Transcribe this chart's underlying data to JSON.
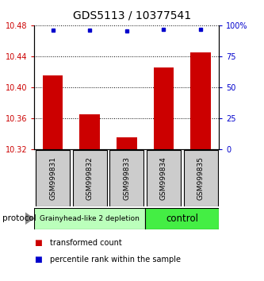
{
  "title": "GDS5113 / 10377541",
  "samples": [
    "GSM999831",
    "GSM999832",
    "GSM999833",
    "GSM999834",
    "GSM999835"
  ],
  "bar_values": [
    10.415,
    10.365,
    10.335,
    10.425,
    10.445
  ],
  "percentile_values": [
    96,
    96,
    95.5,
    96.5,
    96.5
  ],
  "bar_color": "#cc0000",
  "dot_color": "#0000cc",
  "ylim_left": [
    10.32,
    10.48
  ],
  "ylim_right": [
    0,
    100
  ],
  "yticks_left": [
    10.32,
    10.36,
    10.4,
    10.44,
    10.48
  ],
  "yticks_right": [
    0,
    25,
    50,
    75,
    100
  ],
  "groups": [
    {
      "label": "Grainyhead-like 2 depletion",
      "start": 0,
      "end": 3,
      "color": "#bbffbb",
      "text_size": 6.5
    },
    {
      "label": "control",
      "start": 3,
      "end": 5,
      "color": "#44ee44",
      "text_size": 8.5
    }
  ],
  "group_label": "protocol",
  "legend_items": [
    {
      "color": "#cc0000",
      "marker": "s",
      "label": "transformed count"
    },
    {
      "color": "#0000cc",
      "marker": "s",
      "label": "percentile rank within the sample"
    }
  ],
  "bar_width": 0.55,
  "background_color": "#ffffff",
  "tick_label_color_left": "#cc0000",
  "tick_label_color_right": "#0000cc"
}
